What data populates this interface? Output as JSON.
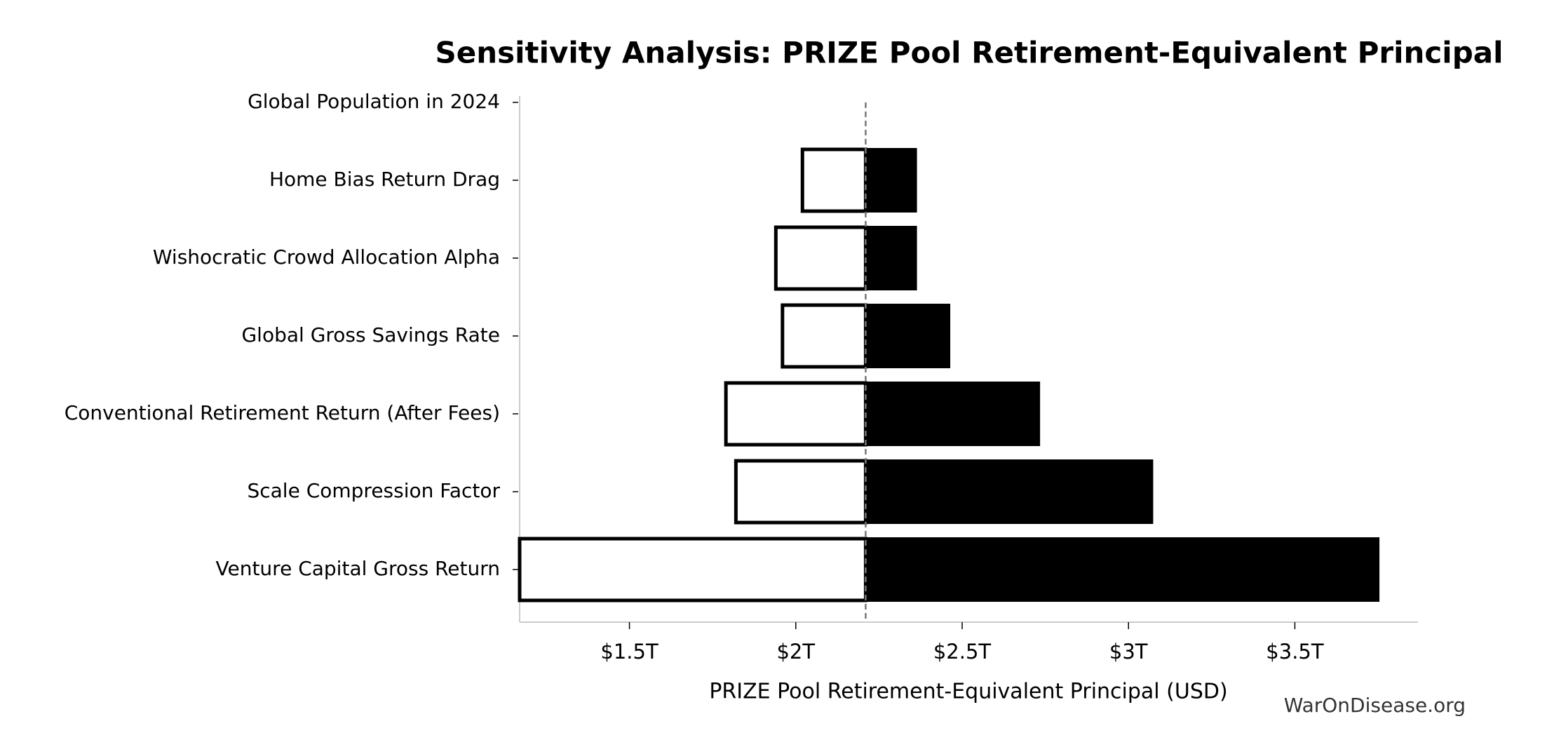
{
  "chart_data": {
    "type": "tornado",
    "title": "Sensitivity Analysis: PRIZE Pool Retirement-Equivalent Principal",
    "x_label": "PRIZE Pool Retirement-Equivalent Principal (USD)",
    "watermark": "WarOnDisease.org",
    "categories": [
      "Global Population in 2024",
      "Home Bias Return Drag",
      "Wishocratic Crowd Allocation Alpha",
      "Global Gross Savings Rate",
      "Conventional Retirement Return (After Fees)",
      "Scale Compression Factor",
      "Venture Capital Gross Return"
    ],
    "baseline": 2210000000000,
    "low_values": [
      2210000000000,
      2020000000000,
      1940000000000,
      1960000000000,
      1790000000000,
      1820000000000,
      1170000000000
    ],
    "high_values": [
      2210000000000,
      2360000000000,
      2360000000000,
      2460000000000,
      2730000000000,
      3070000000000,
      3750000000000
    ],
    "low_color": "#ffffff",
    "high_color": "#000000",
    "xlim": [
      1170000000000,
      3870000000000
    ],
    "xticks": [
      {
        "value": 1500000000000,
        "label": "$1.5T"
      },
      {
        "value": 2000000000000,
        "label": "$2T"
      },
      {
        "value": 2500000000000,
        "label": "$2.5T"
      },
      {
        "value": 3000000000000,
        "label": "$3T"
      },
      {
        "value": 3500000000000,
        "label": "$3.5T"
      }
    ]
  }
}
